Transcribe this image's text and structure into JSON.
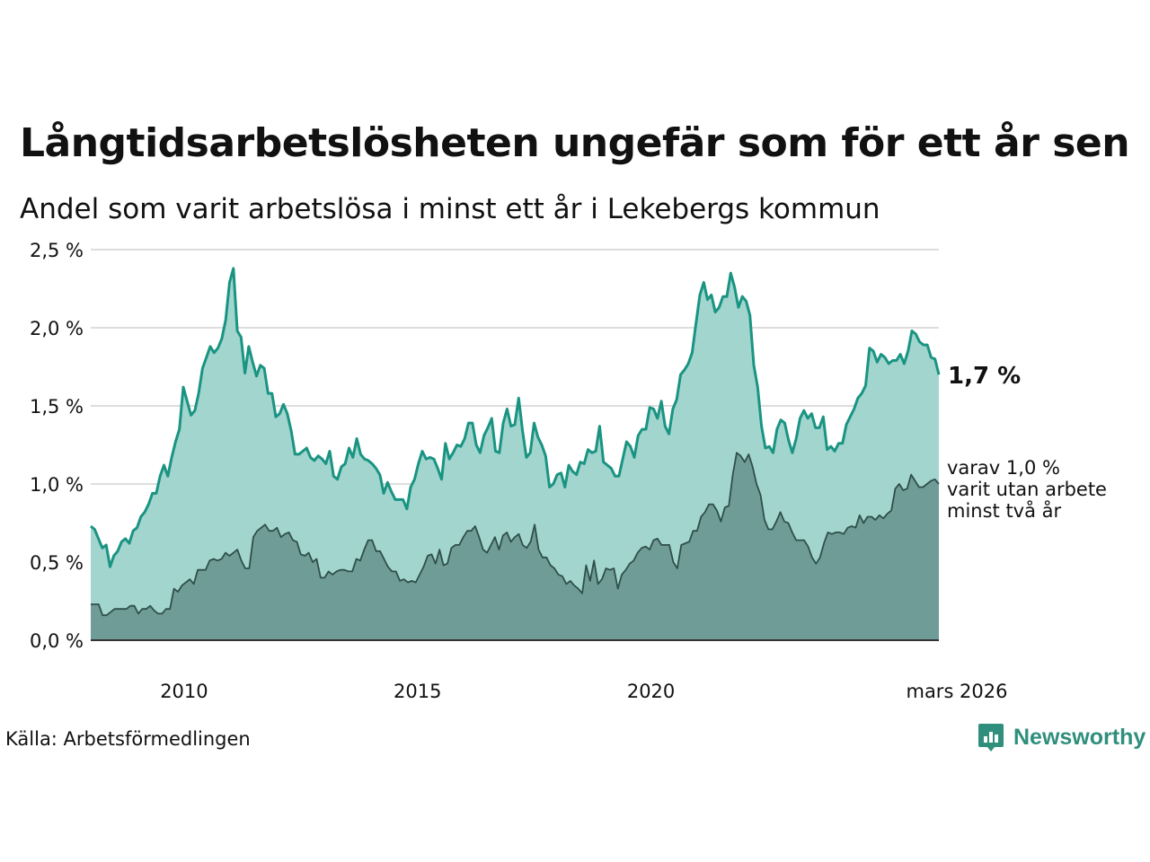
{
  "header": {
    "title": "Långtidsarbetslösheten ungefär som för ett år sen",
    "subtitle": "Andel som varit arbetslösa i minst ett år i Lekebergs kommun"
  },
  "footer": {
    "source": "Källa: Arbetsförmedlingen",
    "brand": "Newsworthy"
  },
  "colors": {
    "main_line": "#1a9482",
    "main_fill": "#a3d5cf",
    "sub_line": "#2f4f4a",
    "sub_fill": "#6f9c97",
    "grid": "#dddddd"
  },
  "chart_data": {
    "type": "area",
    "x_start": 2008.0,
    "x_end": 2026.1667,
    "xlim": [
      2008.0,
      2026.1667
    ],
    "ylim": [
      0,
      2.5
    ],
    "y_ticks": [
      0,
      0.5,
      1.0,
      1.5,
      2.0,
      2.5
    ],
    "y_tick_labels": [
      "0,0 %",
      "0,5 %",
      "1,0 %",
      "1,5 %",
      "2,0 %",
      "2,5 %"
    ],
    "x_ticks": [
      2010,
      2015,
      2020,
      2026.1667
    ],
    "x_tick_labels": [
      "2010",
      "2015",
      "2020",
      "mars 2026"
    ],
    "grid": true,
    "series": [
      {
        "name": "Minst ett år",
        "label": "1,7 %",
        "values": [
          0.73,
          0.71,
          0.65,
          0.59,
          0.61,
          0.47,
          0.54,
          0.57,
          0.63,
          0.65,
          0.62,
          0.7,
          0.72,
          0.79,
          0.82,
          0.87,
          0.94,
          0.94,
          1.05,
          1.12,
          1.05,
          1.17,
          1.27,
          1.35,
          1.62,
          1.53,
          1.44,
          1.47,
          1.58,
          1.74,
          1.81,
          1.88,
          1.84,
          1.87,
          1.93,
          2.05,
          2.29,
          2.38,
          1.98,
          1.94,
          1.71,
          1.88,
          1.78,
          1.69,
          1.76,
          1.74,
          1.58,
          1.58,
          1.43,
          1.45,
          1.51,
          1.45,
          1.34,
          1.19,
          1.19,
          1.21,
          1.23,
          1.17,
          1.15,
          1.18,
          1.16,
          1.13,
          1.21,
          1.05,
          1.03,
          1.11,
          1.13,
          1.23,
          1.17,
          1.29,
          1.19,
          1.16,
          1.15,
          1.13,
          1.1,
          1.06,
          0.94,
          1.01,
          0.95,
          0.9,
          0.9,
          0.9,
          0.84,
          0.98,
          1.03,
          1.13,
          1.21,
          1.16,
          1.17,
          1.16,
          1.1,
          1.03,
          1.26,
          1.16,
          1.2,
          1.25,
          1.24,
          1.29,
          1.39,
          1.39,
          1.25,
          1.2,
          1.31,
          1.36,
          1.42,
          1.21,
          1.2,
          1.39,
          1.48,
          1.37,
          1.38,
          1.55,
          1.34,
          1.17,
          1.2,
          1.39,
          1.3,
          1.25,
          1.18,
          0.98,
          1.0,
          1.06,
          1.07,
          0.98,
          1.12,
          1.08,
          1.06,
          1.14,
          1.13,
          1.22,
          1.2,
          1.21,
          1.37,
          1.14,
          1.12,
          1.1,
          1.05,
          1.05,
          1.16,
          1.27,
          1.24,
          1.17,
          1.31,
          1.35,
          1.35,
          1.49,
          1.48,
          1.42,
          1.53,
          1.37,
          1.32,
          1.48,
          1.54,
          1.7,
          1.73,
          1.77,
          1.84,
          2.03,
          2.21,
          2.29,
          2.18,
          2.21,
          2.1,
          2.13,
          2.2,
          2.2,
          2.35,
          2.26,
          2.13,
          2.2,
          2.17,
          2.08,
          1.76,
          1.62,
          1.37,
          1.23,
          1.24,
          1.2,
          1.35,
          1.41,
          1.39,
          1.28,
          1.2,
          1.29,
          1.42,
          1.47,
          1.42,
          1.45,
          1.36,
          1.36,
          1.43,
          1.22,
          1.24,
          1.21,
          1.26,
          1.26,
          1.38,
          1.43,
          1.48,
          1.55,
          1.58,
          1.63,
          1.87,
          1.85,
          1.78,
          1.83,
          1.81,
          1.77,
          1.79,
          1.79,
          1.83,
          1.77,
          1.85,
          1.98,
          1.96,
          1.91,
          1.89,
          1.89,
          1.81,
          1.8,
          1.7
        ]
      },
      {
        "name": "Minst två år",
        "label_lines": [
          "varav 1,0 %",
          "varit utan arbete",
          "minst två år"
        ],
        "values": [
          0.23,
          0.23,
          0.23,
          0.16,
          0.16,
          0.18,
          0.2,
          0.2,
          0.2,
          0.2,
          0.22,
          0.22,
          0.17,
          0.2,
          0.2,
          0.22,
          0.19,
          0.17,
          0.17,
          0.2,
          0.2,
          0.33,
          0.31,
          0.35,
          0.37,
          0.39,
          0.36,
          0.45,
          0.45,
          0.45,
          0.51,
          0.52,
          0.51,
          0.52,
          0.56,
          0.54,
          0.56,
          0.58,
          0.51,
          0.46,
          0.46,
          0.66,
          0.7,
          0.72,
          0.74,
          0.7,
          0.7,
          0.72,
          0.66,
          0.68,
          0.69,
          0.64,
          0.63,
          0.55,
          0.54,
          0.56,
          0.5,
          0.52,
          0.4,
          0.4,
          0.44,
          0.42,
          0.44,
          0.45,
          0.45,
          0.44,
          0.44,
          0.52,
          0.51,
          0.58,
          0.64,
          0.64,
          0.57,
          0.57,
          0.52,
          0.47,
          0.44,
          0.44,
          0.38,
          0.39,
          0.37,
          0.38,
          0.37,
          0.42,
          0.47,
          0.54,
          0.55,
          0.49,
          0.58,
          0.48,
          0.49,
          0.59,
          0.61,
          0.61,
          0.66,
          0.7,
          0.7,
          0.73,
          0.66,
          0.58,
          0.56,
          0.61,
          0.66,
          0.58,
          0.67,
          0.69,
          0.63,
          0.66,
          0.68,
          0.61,
          0.59,
          0.63,
          0.74,
          0.58,
          0.53,
          0.53,
          0.48,
          0.46,
          0.42,
          0.41,
          0.36,
          0.38,
          0.35,
          0.33,
          0.3,
          0.48,
          0.38,
          0.51,
          0.36,
          0.39,
          0.46,
          0.45,
          0.46,
          0.33,
          0.42,
          0.45,
          0.49,
          0.51,
          0.56,
          0.59,
          0.6,
          0.58,
          0.64,
          0.65,
          0.61,
          0.61,
          0.61,
          0.5,
          0.46,
          0.61,
          0.62,
          0.63,
          0.7,
          0.7,
          0.79,
          0.82,
          0.87,
          0.87,
          0.83,
          0.76,
          0.85,
          0.86,
          1.06,
          1.2,
          1.18,
          1.14,
          1.19,
          1.11,
          1.0,
          0.93,
          0.77,
          0.71,
          0.71,
          0.76,
          0.82,
          0.76,
          0.75,
          0.69,
          0.64,
          0.64,
          0.64,
          0.6,
          0.53,
          0.49,
          0.53,
          0.62,
          0.69,
          0.68,
          0.69,
          0.69,
          0.68,
          0.72,
          0.73,
          0.72,
          0.8,
          0.75,
          0.79,
          0.79,
          0.77,
          0.8,
          0.78,
          0.81,
          0.83,
          0.97,
          1.0,
          0.96,
          0.97,
          1.06,
          1.02,
          0.98,
          0.98,
          1.0,
          1.02,
          1.03,
          1.0
        ]
      }
    ]
  }
}
